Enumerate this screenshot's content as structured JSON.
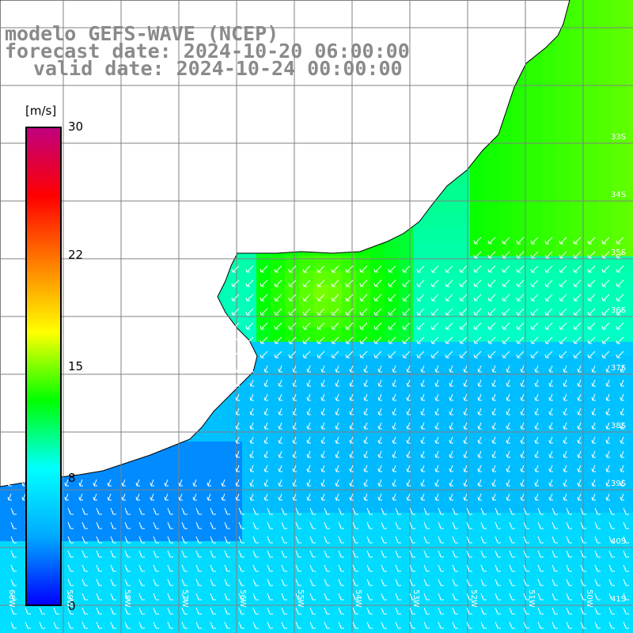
{
  "title": {
    "line1": "modelo GEFS-WAVE (NCEP)",
    "line2": "forecast date: 2024-10-20 06:00:00",
    "line3": "valid date: 2024-10-24 00:00:00"
  },
  "colorbar": {
    "unit": "[m/s]",
    "min": 0,
    "max": 30,
    "ticks": [
      "30",
      "22",
      "15",
      "8",
      "0"
    ],
    "tick_values": [
      30,
      22,
      15,
      8,
      0
    ],
    "colors": [
      "#0000ff",
      "#00aaff",
      "#00ffff",
      "#00ff00",
      "#ffff00",
      "#ff8000",
      "#ff0000",
      "#c0007f"
    ]
  },
  "lat_labels": [
    "33S",
    "34S",
    "35S",
    "36S",
    "37S",
    "38S",
    "39S",
    "40S",
    "41S"
  ],
  "lon_labels": [
    "60W",
    "59W",
    "58W",
    "57W",
    "56W",
    "55W",
    "54W",
    "53W",
    "52W",
    "51W",
    "50W"
  ],
  "land_color": "#ffffff",
  "grid_color": "#808080",
  "arrow_color": "#ffffff"
}
